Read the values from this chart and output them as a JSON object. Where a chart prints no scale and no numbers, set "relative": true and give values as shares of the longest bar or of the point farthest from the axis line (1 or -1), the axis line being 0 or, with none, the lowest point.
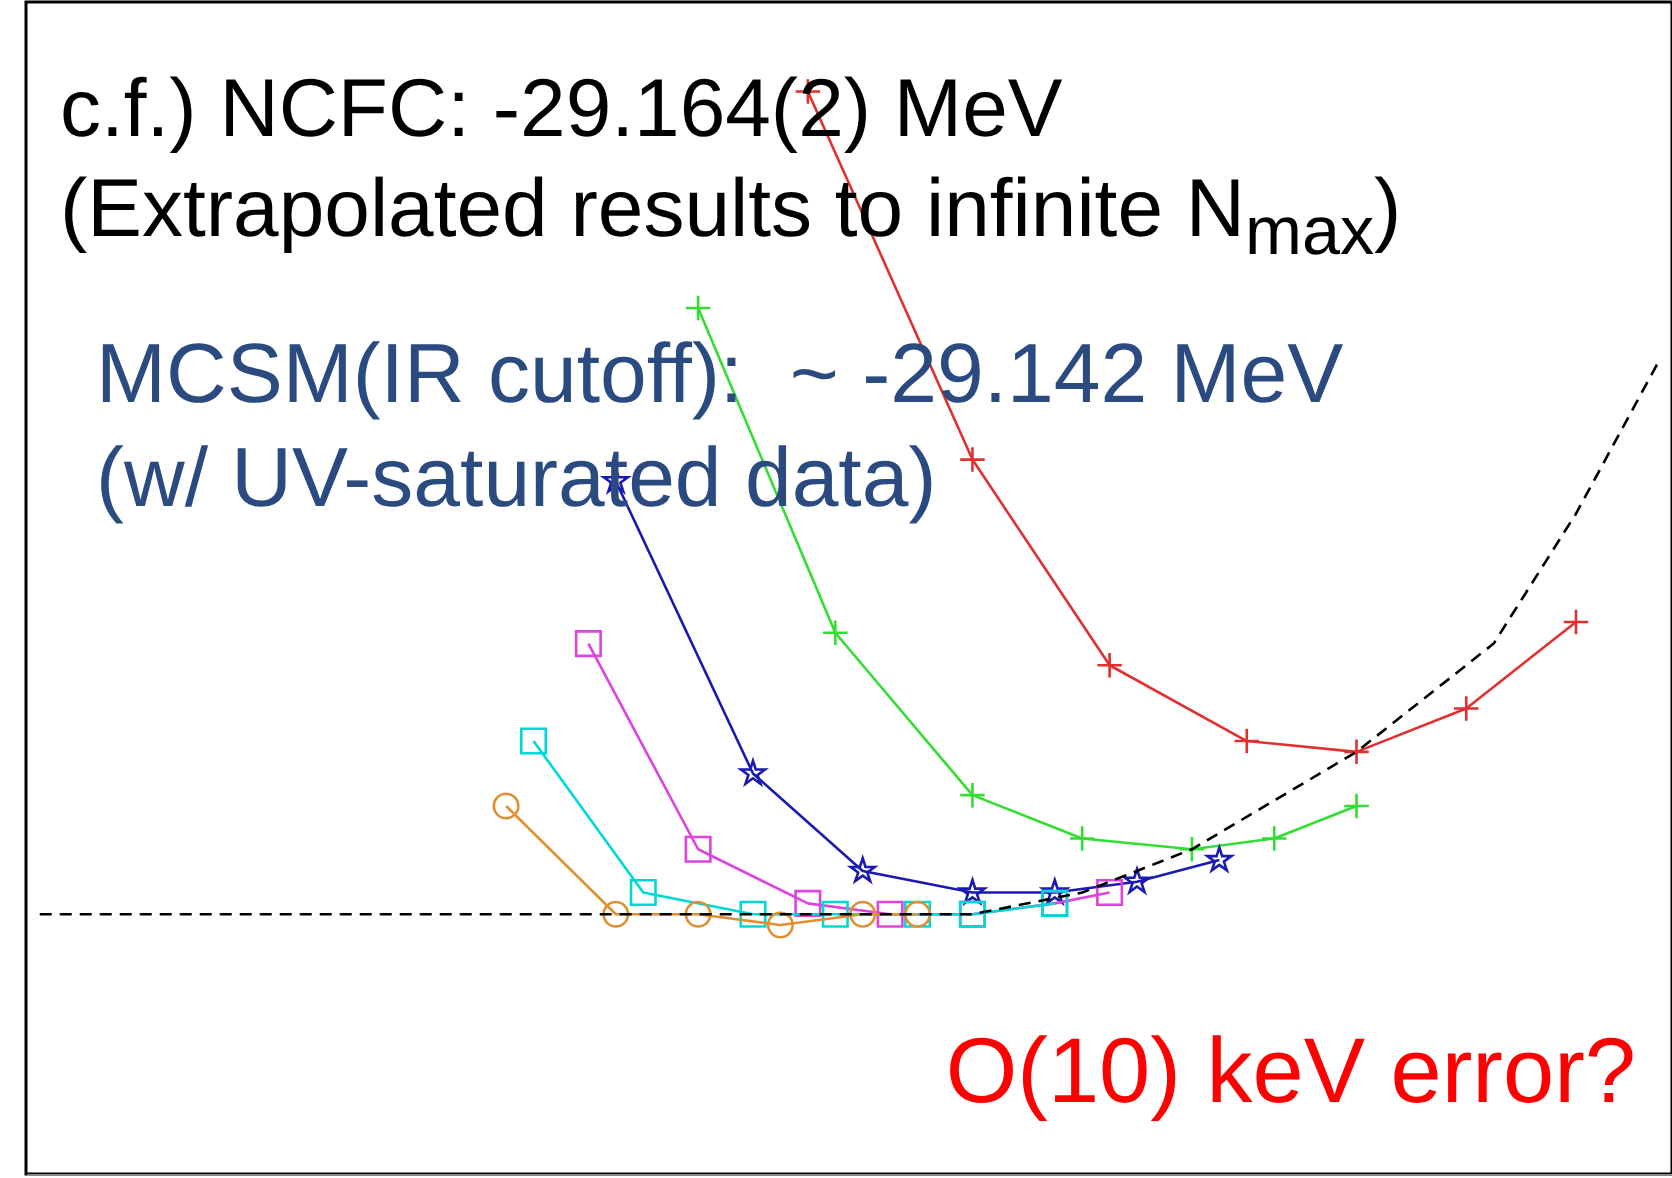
{
  "chart_data": {
    "type": "line",
    "relative": true,
    "categories": [
      null,
      null,
      null,
      null,
      null,
      null,
      null,
      null,
      null,
      null,
      null,
      null,
      null,
      null,
      null,
      null,
      null,
      null,
      null,
      null,
      null,
      null,
      null,
      null,
      null,
      null,
      null,
      null,
      null,
      null,
      null,
      null,
      null,
      null,
      null,
      null,
      null,
      null,
      null,
      null,
      null,
      null,
      null,
      null,
      null,
      null,
      null,
      null,
      null,
      null,
      null,
      null,
      null,
      null,
      null,
      null,
      null,
      null,
      null,
      null
    ],
    "series": [
      {
        "color": "#e03030",
        "marker": "cross",
        "values": [
          null,
          null,
          null,
          null,
          null,
          null,
          null,
          null,
          null,
          null,
          null,
          null,
          null,
          null,
          null,
          null,
          null,
          null,
          null,
          null,
          null,
          null,
          null,
          null,
          null,
          null,
          null,
          null,
          1.0,
          null,
          null,
          null,
          null,
          null,
          0.66,
          null,
          null,
          null,
          null,
          0.47,
          null,
          null,
          null,
          null,
          0.4,
          null,
          null,
          null,
          0.39,
          null,
          null,
          null,
          0.43,
          null,
          null,
          null,
          0.51,
          null,
          null,
          null
        ]
      },
      {
        "color": "#33dd33",
        "marker": "cross",
        "values": [
          null,
          null,
          null,
          null,
          null,
          null,
          null,
          null,
          null,
          null,
          null,
          null,
          null,
          null,
          null,
          null,
          null,
          null,
          null,
          null,
          null,
          null,
          null,
          null,
          0.8,
          null,
          null,
          null,
          null,
          0.5,
          null,
          null,
          null,
          null,
          0.35,
          null,
          null,
          null,
          0.31,
          null,
          null,
          null,
          0.3,
          null,
          null,
          0.31,
          null,
          null,
          0.34,
          null,
          null,
          null,
          null,
          null,
          null,
          null,
          null,
          null,
          null,
          null
        ]
      },
      {
        "color": "#1a1ab0",
        "marker": "star",
        "values": [
          null,
          null,
          null,
          null,
          null,
          null,
          null,
          null,
          null,
          null,
          null,
          null,
          null,
          null,
          null,
          null,
          null,
          null,
          null,
          null,
          null,
          0.64,
          null,
          null,
          null,
          null,
          0.37,
          null,
          null,
          null,
          0.28,
          null,
          null,
          null,
          0.26,
          null,
          null,
          0.26,
          null,
          null,
          0.27,
          null,
          null,
          0.29,
          null,
          null,
          null,
          null,
          null,
          null,
          null,
          null,
          null,
          null,
          null,
          null,
          null,
          null,
          null,
          null
        ]
      },
      {
        "color": "#dd44dd",
        "marker": "square",
        "values": [
          null,
          null,
          null,
          null,
          null,
          null,
          null,
          null,
          null,
          null,
          null,
          null,
          null,
          null,
          null,
          null,
          null,
          null,
          null,
          null,
          0.49,
          null,
          null,
          null,
          0.3,
          null,
          null,
          null,
          0.25,
          null,
          null,
          0.24,
          null,
          null,
          0.24,
          null,
          null,
          0.25,
          null,
          0.26,
          null,
          null,
          null,
          null,
          null,
          null,
          null,
          null,
          null,
          null,
          null,
          null,
          null,
          null,
          null,
          null,
          null,
          null,
          null,
          null
        ]
      },
      {
        "color": "#00d8d8",
        "marker": "square",
        "values": [
          null,
          null,
          null,
          null,
          null,
          null,
          null,
          null,
          null,
          null,
          null,
          null,
          null,
          null,
          null,
          null,
          null,
          null,
          0.4,
          null,
          null,
          null,
          0.26,
          null,
          null,
          null,
          0.24,
          null,
          null,
          0.24,
          null,
          null,
          0.24,
          null,
          0.24,
          null,
          null,
          0.25,
          null,
          null,
          null,
          null,
          null,
          null,
          null,
          null,
          null,
          null,
          null,
          null,
          null,
          null,
          null,
          null,
          null,
          null,
          null,
          null,
          null,
          null
        ]
      },
      {
        "color": "#e09030",
        "marker": "circle",
        "values": [
          null,
          null,
          null,
          null,
          null,
          null,
          null,
          null,
          null,
          null,
          null,
          null,
          null,
          null,
          null,
          null,
          null,
          0.34,
          null,
          null,
          null,
          0.24,
          null,
          null,
          0.24,
          null,
          null,
          0.23,
          null,
          null,
          0.24,
          null,
          0.24,
          null,
          null,
          null,
          null,
          null,
          null,
          null,
          null,
          null,
          null,
          null,
          null,
          null,
          null,
          null,
          null,
          null,
          null,
          null,
          null,
          null,
          null,
          null,
          null,
          null,
          null,
          null
        ]
      },
      {
        "color": "#000000",
        "marker": "none",
        "line_style": "dashed",
        "values": [
          0.24,
          null,
          null,
          null,
          null,
          null,
          null,
          null,
          null,
          null,
          null,
          null,
          null,
          null,
          null,
          null,
          null,
          null,
          null,
          null,
          null,
          null,
          null,
          null,
          null,
          null,
          null,
          null,
          null,
          0.24,
          null,
          null,
          null,
          null,
          0.24,
          null,
          null,
          null,
          0.26,
          null,
          null,
          null,
          0.3,
          null,
          null,
          null,
          null,
          null,
          0.39,
          null,
          null,
          null,
          null,
          0.49,
          null,
          null,
          0.61,
          null,
          null,
          0.75
        ]
      }
    ],
    "annotations": [
      "c.f.) NCFC: -29.164(2) MeV",
      "(Extrapolated results to infinite N$_{max}$)",
      "MCSM(IR cutoff):  ~ -29.142 MeV",
      "(w/ UV-saturated data)",
      "O(10) keV error?"
    ]
  }
}
